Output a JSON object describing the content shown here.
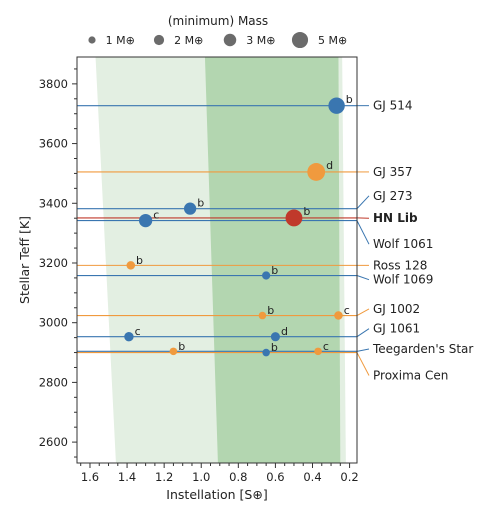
{
  "chart_data": {
    "type": "scatter",
    "xlabel": "Instellation [S⊕]",
    "ylabel": "Stellar Teff [K]",
    "xlim": [
      1.67,
      0.16
    ],
    "ylim": [
      2530,
      3890
    ],
    "x_ticks": [
      1.6,
      1.4,
      1.2,
      1.0,
      0.8,
      0.6,
      0.4,
      0.2
    ],
    "x_tick_labels": [
      "1.6",
      "1.4",
      "1.2",
      "1.0",
      "0.8",
      "0.6",
      "0.4",
      "0.2"
    ],
    "y_ticks": [
      2600,
      2800,
      3000,
      3200,
      3400,
      3600,
      3800
    ],
    "y_tick_labels": [
      "2600",
      "2800",
      "3000",
      "3200",
      "3400",
      "3600",
      "3800"
    ],
    "grid": false,
    "habitable_zone": {
      "optimistic": {
        "top": [
          1.57,
          0.24
        ],
        "bottom": [
          1.46,
          0.22
        ],
        "color": "#e3efe2"
      },
      "conservative": {
        "top": [
          0.98,
          0.26
        ],
        "bottom": [
          0.91,
          0.25
        ],
        "color": "#b3d6b0"
      }
    },
    "legend": {
      "title": "(minimum) Mass",
      "placement": "top",
      "entries": [
        {
          "label": "1 M⊕",
          "mass": 1
        },
        {
          "label": "2 M⊕",
          "mass": 2
        },
        {
          "label": "3 M⊕",
          "mass": 3
        },
        {
          "label": "5 M⊕",
          "mass": 5
        }
      ]
    },
    "stars": [
      {
        "name": "GJ 514",
        "teff": 3727,
        "color": "#3a76b0",
        "label_teff": 3727,
        "bold": false
      },
      {
        "name": "GJ 357",
        "teff": 3505,
        "color": "#f09a3e",
        "label_teff": 3505,
        "bold": false
      },
      {
        "name": "GJ 273",
        "teff": 3382,
        "color": "#3a76b0",
        "label_teff": 3425,
        "bold": false
      },
      {
        "name": "HN Lib",
        "teff": 3351,
        "color": "#c0392b",
        "label_teff": 3350,
        "bold": true
      },
      {
        "name": "Wolf 1061",
        "teff": 3342,
        "color": "#3a76b0",
        "label_teff": 3263,
        "bold": false
      },
      {
        "name": "Ross 128",
        "teff": 3192,
        "color": "#f09a3e",
        "label_teff": 3192,
        "bold": false
      },
      {
        "name": "Wolf 1069",
        "teff": 3158,
        "color": "#3a76b0",
        "label_teff": 3144,
        "bold": false
      },
      {
        "name": "GJ 1002",
        "teff": 3024,
        "color": "#f09a3e",
        "label_teff": 3046,
        "bold": false
      },
      {
        "name": "GJ 1061",
        "teff": 2953,
        "color": "#3a76b0",
        "label_teff": 2980,
        "bold": false
      },
      {
        "name": "Teegarden's Star",
        "teff": 2904,
        "color": "#3a76b0",
        "label_teff": 2912,
        "bold": false
      },
      {
        "name": "Proxima Cen",
        "teff": 2900,
        "color": "#f09a3e",
        "label_teff": 2823,
        "bold": false
      }
    ],
    "planets": [
      {
        "star": "GJ 514",
        "letter": "b",
        "s": 0.27,
        "teff": 3727,
        "mass": 5.2,
        "color": "#3a76b0"
      },
      {
        "star": "GJ 357",
        "letter": "d",
        "s": 0.38,
        "teff": 3505,
        "mass": 6.1,
        "color": "#f09a3e"
      },
      {
        "star": "GJ 273",
        "letter": "b",
        "s": 1.06,
        "teff": 3382,
        "mass": 2.9,
        "color": "#3a76b0"
      },
      {
        "star": "Wolf 1061",
        "letter": "c",
        "s": 1.3,
        "teff": 3342,
        "mass": 3.4,
        "color": "#3a76b0"
      },
      {
        "star": "HN Lib",
        "letter": "b",
        "s": 0.5,
        "teff": 3351,
        "mass": 5.5,
        "color": "#c0392b"
      },
      {
        "star": "Ross 128",
        "letter": "b",
        "s": 1.38,
        "teff": 3192,
        "mass": 1.4,
        "color": "#f09a3e"
      },
      {
        "star": "Wolf 1069",
        "letter": "b",
        "s": 0.65,
        "teff": 3158,
        "mass": 1.3,
        "color": "#3a76b0"
      },
      {
        "star": "GJ 1002",
        "letter": "b",
        "s": 0.67,
        "teff": 3024,
        "mass": 1.1,
        "color": "#f09a3e"
      },
      {
        "star": "GJ 1002",
        "letter": "c",
        "s": 0.26,
        "teff": 3024,
        "mass": 1.4,
        "color": "#f09a3e"
      },
      {
        "star": "GJ 1061",
        "letter": "c",
        "s": 1.39,
        "teff": 2953,
        "mass": 1.7,
        "color": "#3a76b0"
      },
      {
        "star": "GJ 1061",
        "letter": "d",
        "s": 0.6,
        "teff": 2953,
        "mass": 1.6,
        "color": "#3a76b0"
      },
      {
        "star": "Teegarden's Star",
        "letter": "b",
        "s": 1.15,
        "teff": 2904,
        "mass": 1.1,
        "color": "#f09a3e"
      },
      {
        "star": "Teegarden's Star",
        "letter": "c",
        "s": 0.37,
        "teff": 2904,
        "mass": 1.1,
        "color": "#f09a3e"
      },
      {
        "star": "Proxima Cen",
        "letter": "b",
        "s": 0.65,
        "teff": 2900,
        "mass": 1.1,
        "color": "#3a76b0"
      }
    ]
  }
}
